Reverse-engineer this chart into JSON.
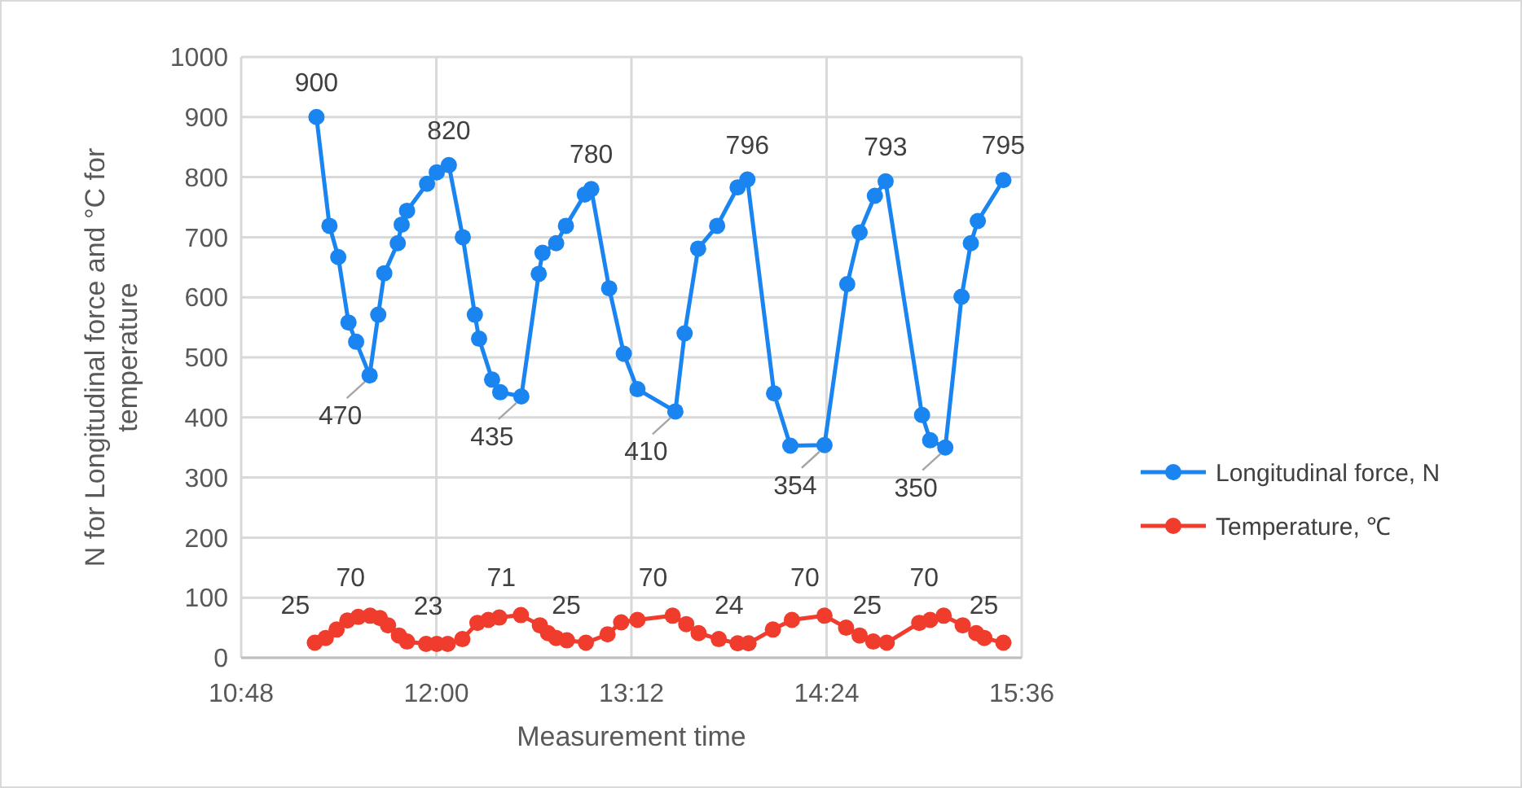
{
  "chart_data": {
    "type": "line",
    "xlabel": "Measurement time",
    "ylabel": "N for Longitudinal force and °C for temperature",
    "xlim": [
      10.8,
      15.6
    ],
    "xticks": [
      {
        "value": 10.8,
        "label": "10:48"
      },
      {
        "value": 12,
        "label": "12:00"
      },
      {
        "value": 13.2,
        "label": "13:12"
      },
      {
        "value": 14.4,
        "label": "14:24"
      },
      {
        "value": 15.6,
        "label": "15:36"
      }
    ],
    "ylim": [
      0,
      1000
    ],
    "yticks": [
      0,
      100,
      200,
      300,
      400,
      500,
      600,
      700,
      800,
      900,
      1000
    ],
    "grid": true,
    "legend": "right",
    "marker": "circle",
    "line_style": "solid",
    "series": [
      {
        "name": "Longitudinal force, N",
        "color": "#1a85f0",
        "x": [
          11.263,
          11.343,
          11.397,
          11.46,
          11.507,
          11.59,
          11.643,
          11.68,
          11.763,
          11.787,
          11.82,
          11.943,
          12.003,
          12.077,
          12.163,
          12.237,
          12.263,
          12.343,
          12.393,
          12.523,
          12.63,
          12.653,
          12.737,
          12.797,
          12.913,
          12.953,
          13.063,
          13.153,
          13.237,
          13.47,
          13.527,
          13.61,
          13.727,
          13.853,
          13.913,
          14.077,
          14.177,
          14.387,
          14.527,
          14.603,
          14.697,
          14.763,
          14.987,
          15.037,
          15.13,
          15.23,
          15.287,
          15.33,
          15.487
        ],
        "values": [
          900,
          719,
          667,
          558,
          526,
          470,
          571,
          640,
          690,
          721,
          744,
          789,
          808,
          820,
          700,
          571,
          531,
          463,
          442,
          435,
          639,
          674,
          690,
          719,
          771,
          780,
          615,
          506,
          447,
          410,
          540,
          681,
          719,
          783,
          796,
          440,
          353,
          354,
          622,
          708,
          769,
          793,
          404,
          362,
          350,
          601,
          690,
          727,
          795
        ]
      },
      {
        "name": "Temperature, ℃",
        "color": "#f03c2d",
        "x": [
          11.253,
          11.32,
          11.387,
          11.453,
          11.52,
          11.593,
          11.653,
          11.703,
          11.77,
          11.82,
          11.937,
          12.003,
          12.07,
          12.16,
          12.253,
          12.32,
          12.387,
          12.52,
          12.637,
          12.687,
          12.737,
          12.803,
          12.92,
          13.053,
          13.137,
          13.237,
          13.453,
          13.537,
          13.613,
          13.737,
          13.853,
          13.92,
          14.07,
          14.187,
          14.387,
          14.52,
          14.603,
          14.687,
          14.77,
          14.97,
          15.037,
          15.12,
          15.237,
          15.32,
          15.37,
          15.487
        ],
        "values": [
          25,
          33,
          47,
          62,
          68,
          70,
          66,
          54,
          37,
          27,
          23,
          23,
          23,
          31,
          58,
          63,
          67,
          71,
          54,
          41,
          33,
          29,
          25,
          39,
          59,
          63,
          70,
          56,
          41,
          31,
          24,
          24,
          47,
          63,
          70,
          50,
          37,
          27,
          25,
          58,
          63,
          70,
          54,
          41,
          33,
          25
        ]
      }
    ],
    "annotations": [
      {
        "text": "900",
        "x": 11.263,
        "y": 900
      },
      {
        "text": "470",
        "x": 11.59,
        "y": 470
      },
      {
        "text": "820",
        "x": 12.077,
        "y": 820
      },
      {
        "text": "435",
        "x": 12.523,
        "y": 435
      },
      {
        "text": "780",
        "x": 12.953,
        "y": 780
      },
      {
        "text": "410",
        "x": 13.47,
        "y": 410
      },
      {
        "text": "796",
        "x": 13.913,
        "y": 796
      },
      {
        "text": "354",
        "x": 14.387,
        "y": 354
      },
      {
        "text": "793",
        "x": 14.763,
        "y": 793
      },
      {
        "text": "350",
        "x": 15.13,
        "y": 350
      },
      {
        "text": "795",
        "x": 15.487,
        "y": 795
      },
      {
        "text": "25",
        "x": 11.253,
        "y": 25
      },
      {
        "text": "70",
        "x": 11.593,
        "y": 70
      },
      {
        "text": "23",
        "x": 12.07,
        "y": 23
      },
      {
        "text": "71",
        "x": 12.52,
        "y": 71
      },
      {
        "text": "25",
        "x": 12.92,
        "y": 25
      },
      {
        "text": "70",
        "x": 13.453,
        "y": 70
      },
      {
        "text": "24",
        "x": 13.92,
        "y": 24
      },
      {
        "text": "70",
        "x": 14.387,
        "y": 70
      },
      {
        "text": "25",
        "x": 14.77,
        "y": 25
      },
      {
        "text": "70",
        "x": 15.12,
        "y": 70
      },
      {
        "text": "25",
        "x": 15.487,
        "y": 25
      }
    ]
  }
}
